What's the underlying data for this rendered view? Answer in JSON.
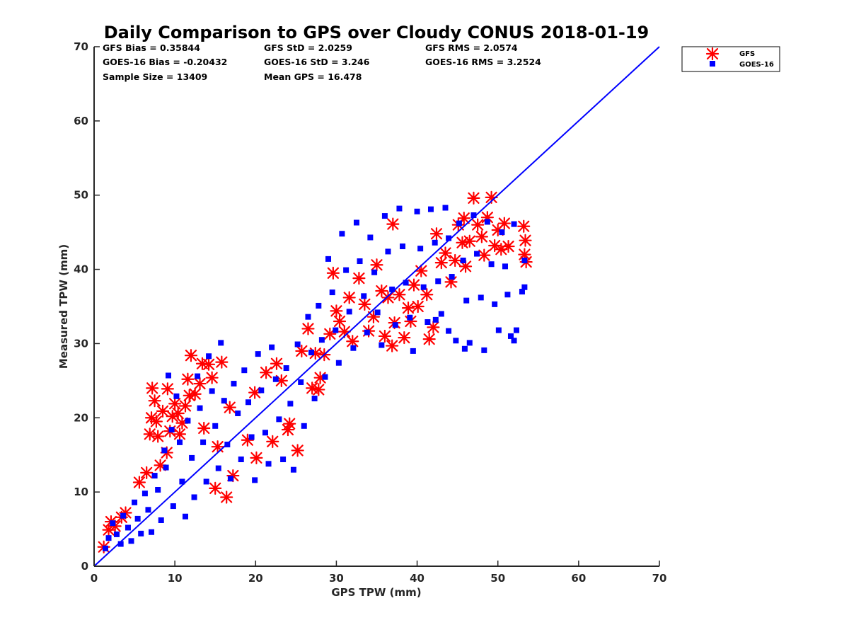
{
  "chart_data": {
    "type": "scatter",
    "title": "Daily Comparison to GPS over Cloudy CONUS 2018-01-19",
    "xlabel": "GPS TPW (mm)",
    "ylabel": "Measured TPW (mm)",
    "xlim": [
      0,
      70
    ],
    "ylim": [
      0,
      70
    ],
    "xticks": [
      0,
      10,
      20,
      30,
      40,
      50,
      60,
      70
    ],
    "yticks": [
      0,
      10,
      20,
      30,
      40,
      50,
      60,
      70
    ],
    "grid": false,
    "legend_position": "outside top-right",
    "reference_line": {
      "x": [
        0,
        70
      ],
      "y": [
        0,
        70
      ],
      "color": "#0000ff"
    },
    "stats": [
      [
        "GFS Bias = 0.35844",
        "GFS StD = 2.0259",
        "GFS RMS = 2.0574"
      ],
      [
        "GOES-16 Bias = -0.20432",
        "GOES-16 StD = 3.246",
        "GOES-16 RMS = 3.2524"
      ],
      [
        "Sample Size = 13409",
        "Mean GPS = 16.478",
        ""
      ]
    ],
    "series": [
      {
        "name": "GFS",
        "marker": "asterisk",
        "color": "#ff0000",
        "points": [
          [
            1.2,
            2.6
          ],
          [
            1.8,
            4.9
          ],
          [
            2.1,
            6.0
          ],
          [
            2.6,
            5.4
          ],
          [
            3.4,
            6.6
          ],
          [
            3.9,
            7.2
          ],
          [
            5.6,
            11.3
          ],
          [
            6.5,
            12.6
          ],
          [
            6.9,
            17.8
          ],
          [
            7.1,
            20.0
          ],
          [
            7.2,
            24.0
          ],
          [
            7.5,
            22.3
          ],
          [
            7.7,
            19.5
          ],
          [
            7.9,
            17.5
          ],
          [
            8.2,
            13.6
          ],
          [
            8.5,
            20.9
          ],
          [
            9.0,
            15.3
          ],
          [
            9.1,
            23.9
          ],
          [
            9.4,
            18.2
          ],
          [
            9.7,
            20.2
          ],
          [
            10.0,
            21.9
          ],
          [
            10.4,
            20.6
          ],
          [
            10.6,
            17.8
          ],
          [
            10.9,
            19.3
          ],
          [
            11.3,
            21.6
          ],
          [
            11.6,
            25.2
          ],
          [
            11.8,
            23.0
          ],
          [
            12.0,
            28.4
          ],
          [
            12.5,
            23.2
          ],
          [
            13.1,
            24.6
          ],
          [
            13.4,
            27.3
          ],
          [
            13.6,
            18.6
          ],
          [
            14.2,
            27.2
          ],
          [
            14.6,
            25.4
          ],
          [
            15.0,
            10.5
          ],
          [
            15.3,
            16.1
          ],
          [
            15.8,
            27.5
          ],
          [
            16.4,
            9.3
          ],
          [
            17.2,
            12.2
          ],
          [
            19.0,
            17.0
          ],
          [
            20.1,
            14.6
          ],
          [
            21.3,
            26.1
          ],
          [
            22.1,
            16.8
          ],
          [
            22.6,
            27.3
          ],
          [
            24.0,
            18.4
          ],
          [
            24.2,
            19.2
          ],
          [
            25.2,
            15.6
          ],
          [
            25.7,
            29.0
          ],
          [
            26.5,
            32.0
          ],
          [
            27.0,
            24.0
          ],
          [
            27.8,
            23.8
          ],
          [
            28.0,
            25.4
          ],
          [
            28.5,
            28.5
          ],
          [
            29.2,
            31.3
          ],
          [
            29.6,
            39.5
          ],
          [
            30.4,
            33.0
          ],
          [
            31.0,
            31.6
          ],
          [
            31.6,
            36.2
          ],
          [
            32.0,
            30.3
          ],
          [
            32.8,
            38.8
          ],
          [
            33.5,
            35.3
          ],
          [
            34.0,
            31.7
          ],
          [
            34.6,
            33.6
          ],
          [
            35.0,
            40.6
          ],
          [
            35.6,
            37.1
          ],
          [
            36.0,
            31.0
          ],
          [
            36.4,
            36.2
          ],
          [
            36.9,
            29.7
          ],
          [
            37.2,
            32.8
          ],
          [
            37.8,
            36.6
          ],
          [
            38.4,
            30.8
          ],
          [
            38.9,
            34.8
          ],
          [
            39.2,
            33.0
          ],
          [
            39.6,
            37.9
          ],
          [
            40.1,
            35.0
          ],
          [
            40.5,
            39.8
          ],
          [
            41.2,
            36.6
          ],
          [
            41.5,
            30.6
          ],
          [
            42.0,
            32.2
          ],
          [
            42.4,
            44.8
          ],
          [
            43.0,
            40.9
          ],
          [
            43.5,
            42.2
          ],
          [
            44.2,
            38.3
          ],
          [
            44.7,
            41.2
          ],
          [
            45.1,
            46.0
          ],
          [
            45.6,
            43.6
          ],
          [
            46.0,
            40.4
          ],
          [
            46.5,
            43.8
          ],
          [
            47.0,
            49.6
          ],
          [
            47.5,
            46.0
          ],
          [
            48.0,
            44.4
          ],
          [
            48.3,
            41.9
          ],
          [
            48.7,
            47.0
          ],
          [
            49.2,
            49.7
          ],
          [
            49.6,
            43.2
          ],
          [
            50.0,
            45.3
          ],
          [
            50.4,
            42.7
          ],
          [
            50.8,
            46.2
          ],
          [
            51.3,
            43.1
          ],
          [
            53.2,
            45.8
          ],
          [
            53.4,
            43.9
          ],
          [
            53.3,
            42.0
          ],
          [
            53.5,
            41.0
          ],
          [
            37.0,
            46.1
          ],
          [
            45.8,
            46.9
          ],
          [
            19.9,
            23.4
          ],
          [
            23.2,
            25.0
          ],
          [
            16.8,
            21.4
          ],
          [
            27.4,
            28.7
          ],
          [
            30.0,
            34.4
          ]
        ]
      },
      {
        "name": "GOES-16",
        "marker": "square",
        "color": "#0000ff",
        "points": [
          [
            1.4,
            2.4
          ],
          [
            1.8,
            3.8
          ],
          [
            2.3,
            5.8
          ],
          [
            2.8,
            4.3
          ],
          [
            3.3,
            3.0
          ],
          [
            3.6,
            6.8
          ],
          [
            4.2,
            5.2
          ],
          [
            4.6,
            3.4
          ],
          [
            5.0,
            8.6
          ],
          [
            5.4,
            6.4
          ],
          [
            5.8,
            4.4
          ],
          [
            6.3,
            9.8
          ],
          [
            6.7,
            7.6
          ],
          [
            7.1,
            4.6
          ],
          [
            7.5,
            12.2
          ],
          [
            7.9,
            10.3
          ],
          [
            8.3,
            6.2
          ],
          [
            8.7,
            15.6
          ],
          [
            8.9,
            13.3
          ],
          [
            9.2,
            25.7
          ],
          [
            9.6,
            18.4
          ],
          [
            9.8,
            8.1
          ],
          [
            10.2,
            22.9
          ],
          [
            10.6,
            16.7
          ],
          [
            10.9,
            11.4
          ],
          [
            11.3,
            6.7
          ],
          [
            11.6,
            19.6
          ],
          [
            12.1,
            14.6
          ],
          [
            12.4,
            9.3
          ],
          [
            12.8,
            25.6
          ],
          [
            13.1,
            21.3
          ],
          [
            13.5,
            16.7
          ],
          [
            13.9,
            11.4
          ],
          [
            14.2,
            28.3
          ],
          [
            14.6,
            23.6
          ],
          [
            15.0,
            18.9
          ],
          [
            15.4,
            13.2
          ],
          [
            15.7,
            30.1
          ],
          [
            16.1,
            22.3
          ],
          [
            16.5,
            16.4
          ],
          [
            16.9,
            11.8
          ],
          [
            17.3,
            24.6
          ],
          [
            17.8,
            20.6
          ],
          [
            18.2,
            14.4
          ],
          [
            18.6,
            26.4
          ],
          [
            19.1,
            22.1
          ],
          [
            19.5,
            17.4
          ],
          [
            19.9,
            11.6
          ],
          [
            20.3,
            28.6
          ],
          [
            20.7,
            23.7
          ],
          [
            21.2,
            18.0
          ],
          [
            21.6,
            13.8
          ],
          [
            22.0,
            29.5
          ],
          [
            22.5,
            25.2
          ],
          [
            22.9,
            19.8
          ],
          [
            23.4,
            14.4
          ],
          [
            23.8,
            26.7
          ],
          [
            24.3,
            21.9
          ],
          [
            24.7,
            13.0
          ],
          [
            25.2,
            29.9
          ],
          [
            25.6,
            24.8
          ],
          [
            26.0,
            18.9
          ],
          [
            26.5,
            33.6
          ],
          [
            26.9,
            28.8
          ],
          [
            27.3,
            22.6
          ],
          [
            27.8,
            35.1
          ],
          [
            28.2,
            30.5
          ],
          [
            28.6,
            25.5
          ],
          [
            29.0,
            41.4
          ],
          [
            29.5,
            36.9
          ],
          [
            29.9,
            31.8
          ],
          [
            30.3,
            27.4
          ],
          [
            30.7,
            44.8
          ],
          [
            31.2,
            39.9
          ],
          [
            31.6,
            34.3
          ],
          [
            32.1,
            29.4
          ],
          [
            32.5,
            46.3
          ],
          [
            32.9,
            41.1
          ],
          [
            33.4,
            36.4
          ],
          [
            33.8,
            31.5
          ],
          [
            34.2,
            44.3
          ],
          [
            34.7,
            39.6
          ],
          [
            35.1,
            34.2
          ],
          [
            35.6,
            29.8
          ],
          [
            36.0,
            47.2
          ],
          [
            36.4,
            42.4
          ],
          [
            36.9,
            37.3
          ],
          [
            37.3,
            32.5
          ],
          [
            37.8,
            48.2
          ],
          [
            38.2,
            43.1
          ],
          [
            38.6,
            38.2
          ],
          [
            39.1,
            33.5
          ],
          [
            39.5,
            29.0
          ],
          [
            40.0,
            47.8
          ],
          [
            40.4,
            42.8
          ],
          [
            40.8,
            37.6
          ],
          [
            41.3,
            32.9
          ],
          [
            41.7,
            48.1
          ],
          [
            42.2,
            43.6
          ],
          [
            42.6,
            38.4
          ],
          [
            43.0,
            34.0
          ],
          [
            43.5,
            48.3
          ],
          [
            43.9,
            44.2
          ],
          [
            44.3,
            39.0
          ],
          [
            44.8,
            30.4
          ],
          [
            45.2,
            46.2
          ],
          [
            45.7,
            41.2
          ],
          [
            46.1,
            35.8
          ],
          [
            46.5,
            30.1
          ],
          [
            47.0,
            47.3
          ],
          [
            47.4,
            42.1
          ],
          [
            47.9,
            36.2
          ],
          [
            48.3,
            29.1
          ],
          [
            48.7,
            46.4
          ],
          [
            49.2,
            40.7
          ],
          [
            49.6,
            35.3
          ],
          [
            50.1,
            31.8
          ],
          [
            50.5,
            45.0
          ],
          [
            50.9,
            40.4
          ],
          [
            51.2,
            36.6
          ],
          [
            51.6,
            31.0
          ],
          [
            52.0,
            46.1
          ],
          [
            53.3,
            41.2
          ],
          [
            53.3,
            37.6
          ],
          [
            53.0,
            37.0
          ],
          [
            52.3,
            31.8
          ],
          [
            52.0,
            30.4
          ],
          [
            43.9,
            31.7
          ],
          [
            45.9,
            29.3
          ],
          [
            42.3,
            33.2
          ]
        ]
      }
    ]
  }
}
